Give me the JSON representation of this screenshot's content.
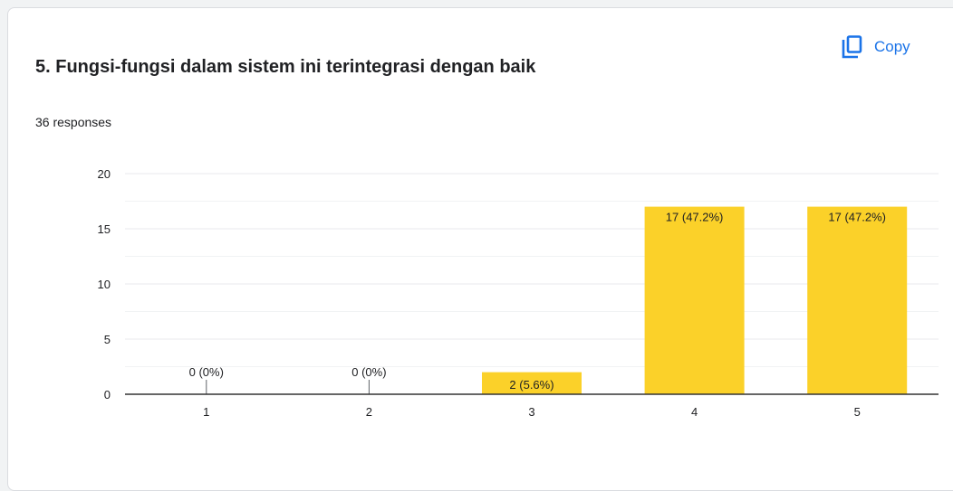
{
  "card": {
    "title": "5. Fungsi-fungsi dalam sistem ini terintegrasi dengan baik",
    "responses": "36 responses",
    "copy_label": "Copy",
    "copy_icon": "copy-icon"
  },
  "colors": {
    "bar": "#fbd129",
    "accent": "#1a73e8",
    "grid": "#e8eaed",
    "axis": "#5f6368"
  },
  "chart_data": {
    "type": "bar",
    "categories": [
      "1",
      "2",
      "3",
      "4",
      "5"
    ],
    "values": [
      0,
      0,
      2,
      17,
      17
    ],
    "data_labels": [
      "0 (0%)",
      "0 (0%)",
      "2 (5.6%)",
      "17 (47.2%)",
      "17 (47.2%)"
    ],
    "ylim": [
      0,
      20
    ],
    "yticks": [
      0,
      5,
      10,
      15,
      20
    ],
    "grid": true,
    "title": "5. Fungsi-fungsi dalam sistem ini terintegrasi dengan baik",
    "xlabel": "",
    "ylabel": ""
  }
}
